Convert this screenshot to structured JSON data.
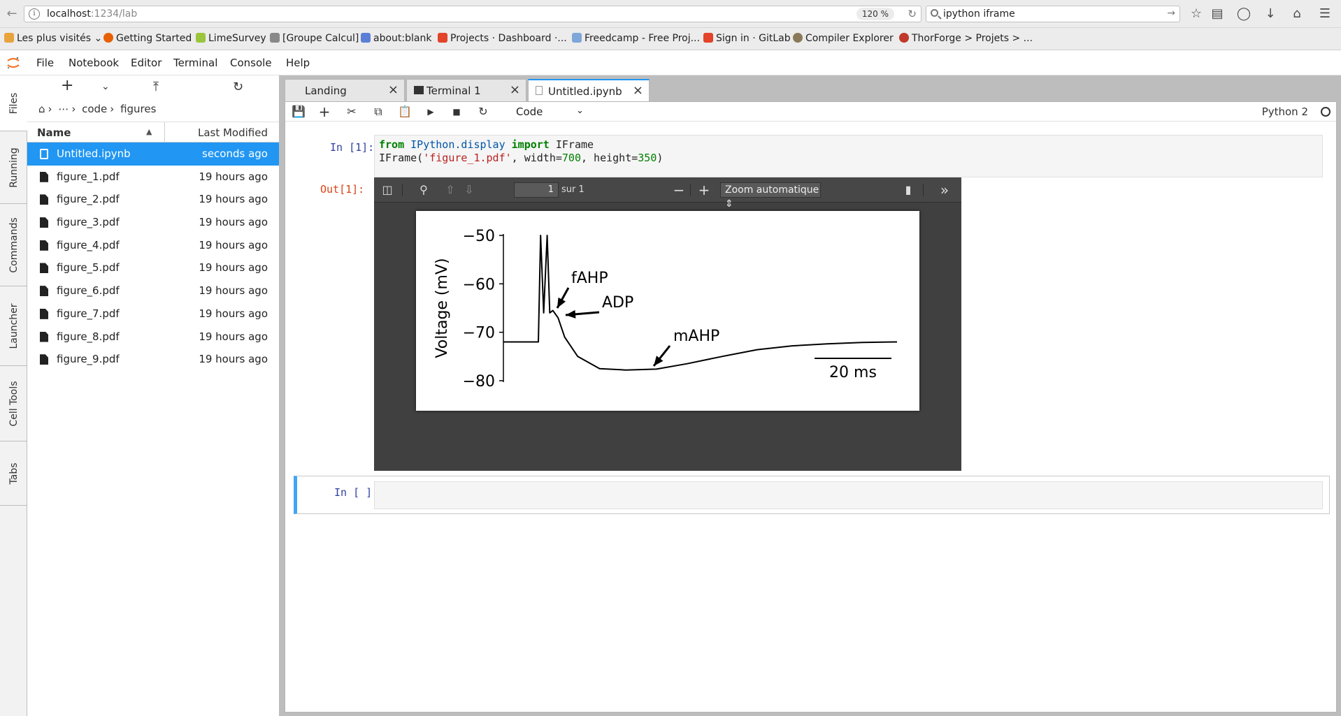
{
  "browser": {
    "url_host": "localhost",
    "url_path": ":1234/lab",
    "zoom": "120 %",
    "search_text": "ipython iframe",
    "bookmarks": [
      "Les plus visités",
      "Getting Started",
      "LimeSurvey",
      "[Groupe Calcul]",
      "about:blank",
      "Projects · Dashboard ·...",
      "Freedcamp - Free Proj...",
      "Sign in · GitLab",
      "Compiler Explorer",
      "ThorForge > Projets > ..."
    ]
  },
  "menubar": {
    "items": [
      "File",
      "Notebook",
      "Editor",
      "Terminal",
      "Console",
      "Help"
    ]
  },
  "left_tabs": [
    "Files",
    "Running",
    "Commands",
    "Launcher",
    "Cell Tools",
    "Tabs"
  ],
  "filebrowser": {
    "breadcrumb": [
      "code",
      "figures"
    ],
    "col_name": "Name",
    "col_modified": "Last Modified",
    "files": [
      {
        "name": "Untitled.ipynb",
        "modified": "seconds ago",
        "type": "notebook",
        "selected": true
      },
      {
        "name": "figure_1.pdf",
        "modified": "19 hours ago",
        "type": "file"
      },
      {
        "name": "figure_2.pdf",
        "modified": "19 hours ago",
        "type": "file"
      },
      {
        "name": "figure_3.pdf",
        "modified": "19 hours ago",
        "type": "file"
      },
      {
        "name": "figure_4.pdf",
        "modified": "19 hours ago",
        "type": "file"
      },
      {
        "name": "figure_5.pdf",
        "modified": "19 hours ago",
        "type": "file"
      },
      {
        "name": "figure_6.pdf",
        "modified": "19 hours ago",
        "type": "file"
      },
      {
        "name": "figure_7.pdf",
        "modified": "19 hours ago",
        "type": "file"
      },
      {
        "name": "figure_8.pdf",
        "modified": "19 hours ago",
        "type": "file"
      },
      {
        "name": "figure_9.pdf",
        "modified": "19 hours ago",
        "type": "file"
      }
    ]
  },
  "doc_tabs": {
    "landing": "Landing",
    "terminal": "Terminal 1",
    "notebook": "Untitled.ipynb"
  },
  "notebook": {
    "cell_type": "Code",
    "kernel": "Python 2",
    "cell1_prompt": "In [1]:",
    "code_line1": {
      "kw1": "from",
      "mod": "IPython.display",
      "kw2": "import",
      "name": "IFrame"
    },
    "code_line2": {
      "fn": "IFrame(",
      "str": "'figure_1.pdf'",
      "mid1": ", width=",
      "w": "700",
      "mid2": ", height=",
      "h": "350",
      "end": ")"
    },
    "out_prompt": "Out[1]:",
    "cell2_prompt": "In [ ]:"
  },
  "pdf": {
    "page_number": "1",
    "page_of": "sur 1",
    "zoom": "Zoom automatique"
  },
  "chart_data": {
    "type": "line",
    "ylabel": "Voltage (mV)",
    "yticks": [
      "−50",
      "−60",
      "−70",
      "−80"
    ],
    "ylim": [
      -80,
      -50
    ],
    "annotations": [
      "fAHP",
      "ADP",
      "mAHP"
    ],
    "scalebar_label": "20 ms",
    "series": [
      {
        "x": [
          0,
          8,
          8.5,
          9.2,
          10,
          10.6,
          11.3,
          12.5,
          14,
          17,
          22,
          28,
          35,
          42,
          50,
          58,
          66,
          74,
          82,
          90
        ],
        "values": [
          -72,
          -72,
          -50,
          -66,
          -50,
          -66,
          -65.5,
          -67,
          -71,
          -75,
          -77.5,
          -77.8,
          -77.6,
          -76.5,
          -75,
          -73.6,
          -72.8,
          -72.4,
          -72.1,
          -72
        ]
      }
    ]
  }
}
